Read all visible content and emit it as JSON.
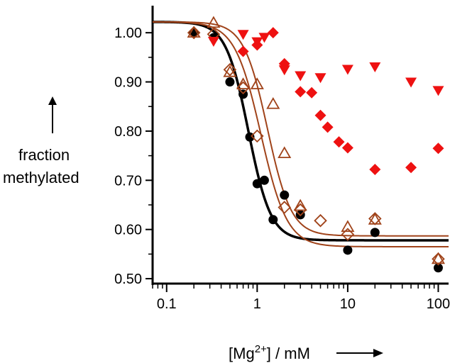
{
  "chart_data": {
    "type": "scatter",
    "x_scale": "log",
    "xlim": [
      0.07,
      130
    ],
    "ylim": [
      0.49,
      1.055
    ],
    "x_ticks": [
      {
        "value": 0.1,
        "label": "0.1"
      },
      {
        "value": 1,
        "label": "1"
      },
      {
        "value": 10,
        "label": "10"
      },
      {
        "value": 100,
        "label": "100"
      }
    ],
    "y_ticks": [
      {
        "value": 0.5,
        "label": "0.50"
      },
      {
        "value": 0.6,
        "label": "0.60"
      },
      {
        "value": 0.7,
        "label": "0.70"
      },
      {
        "value": 0.8,
        "label": "0.80"
      },
      {
        "value": 0.9,
        "label": "0.90"
      },
      {
        "value": 1.0,
        "label": "1.00"
      }
    ],
    "ylabel_line1": "fraction",
    "ylabel_line2": "methylated",
    "xlabel_base": "[Mg",
    "xlabel_sup": "2+",
    "xlabel_rest": "] / mM",
    "grid": false,
    "series": [
      {
        "marker": "circle-filled",
        "color": "#000000",
        "points": [
          [
            0.2,
            1.0
          ],
          [
            0.33,
            0.99
          ],
          [
            0.5,
            0.9
          ],
          [
            0.7,
            0.875
          ],
          [
            0.83,
            0.788
          ],
          [
            1.0,
            0.693
          ],
          [
            1.2,
            0.7
          ],
          [
            1.5,
            0.62
          ],
          [
            2.0,
            0.67
          ],
          [
            3.0,
            0.63
          ],
          [
            10,
            0.558
          ],
          [
            20,
            0.594
          ],
          [
            100,
            0.522
          ]
        ]
      },
      {
        "marker": "triangle-up-open",
        "color": "#a0431a",
        "points": [
          [
            0.2,
            1.0
          ],
          [
            0.33,
            1.02
          ],
          [
            0.5,
            0.92
          ],
          [
            0.7,
            0.895
          ],
          [
            1.0,
            0.895
          ],
          [
            1.5,
            0.855
          ],
          [
            2.0,
            0.755
          ],
          [
            3.0,
            0.648
          ],
          [
            10,
            0.605
          ],
          [
            20,
            0.62
          ],
          [
            100,
            0.54
          ]
        ]
      },
      {
        "marker": "diamond-open",
        "color": "#a0431a",
        "points": [
          [
            0.2,
            1.0
          ],
          [
            0.33,
            0.997
          ],
          [
            0.5,
            0.925
          ],
          [
            0.7,
            0.888
          ],
          [
            1.0,
            0.79
          ],
          [
            2.0,
            0.645
          ],
          [
            3.0,
            0.64
          ],
          [
            5.0,
            0.618
          ],
          [
            10,
            0.59
          ],
          [
            20,
            0.622
          ],
          [
            100,
            0.54
          ]
        ]
      },
      {
        "marker": "diamond-filled",
        "color": "#ee1111",
        "points": [
          [
            0.7,
            0.962
          ],
          [
            1.0,
            0.975
          ],
          [
            1.5,
            1.0
          ],
          [
            2.0,
            0.937
          ],
          [
            3.0,
            0.88
          ],
          [
            4.0,
            0.878
          ],
          [
            5.0,
            0.832
          ],
          [
            6.0,
            0.808
          ],
          [
            8.0,
            0.778
          ],
          [
            10,
            0.766
          ],
          [
            20,
            0.722
          ],
          [
            50,
            0.726
          ],
          [
            100,
            0.765
          ]
        ]
      },
      {
        "marker": "triangle-down-filled",
        "color": "#ee1111",
        "points": [
          [
            0.33,
            0.983
          ],
          [
            0.7,
            0.997
          ],
          [
            1.0,
            0.982
          ],
          [
            1.2,
            0.991
          ],
          [
            2.0,
            0.925
          ],
          [
            3.0,
            0.913
          ],
          [
            5.0,
            0.909
          ],
          [
            10,
            0.926
          ],
          [
            20,
            0.931
          ],
          [
            50,
            0.9
          ],
          [
            100,
            0.883
          ]
        ]
      }
    ],
    "fits": [
      {
        "color": "#000000",
        "top": 1.022,
        "bottom": 0.578,
        "k": 0.8,
        "n": 3.5
      },
      {
        "color": "#a0431a",
        "top": 1.022,
        "bottom": 0.565,
        "k": 1.1,
        "n": 3.0
      },
      {
        "color": "#a0431a",
        "top": 1.022,
        "bottom": 0.587,
        "k": 1.3,
        "n": 3.3
      }
    ]
  }
}
